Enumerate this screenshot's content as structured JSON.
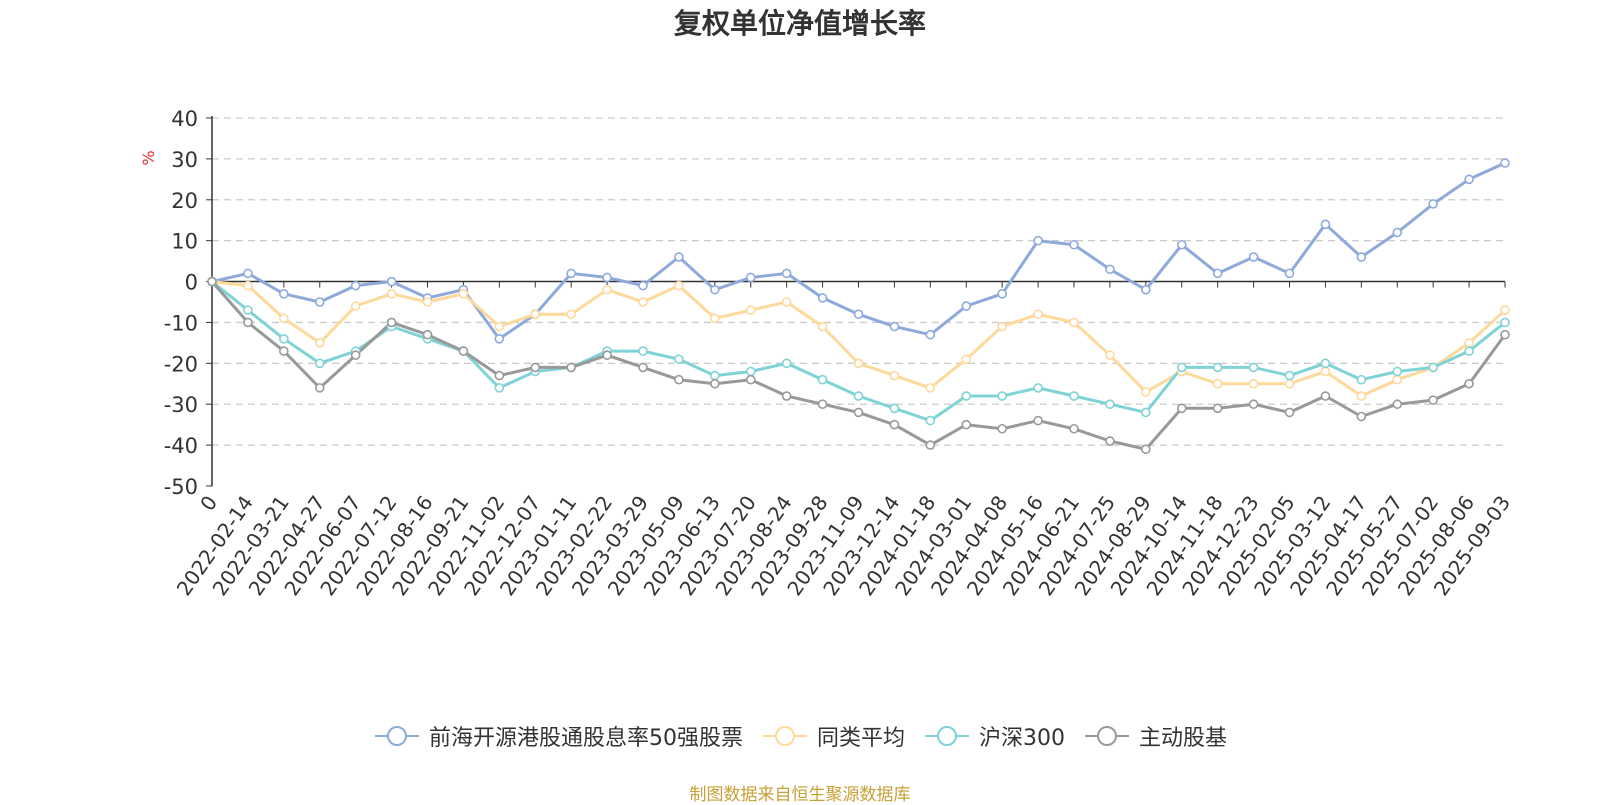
{
  "chart_data": {
    "type": "line",
    "title": "复权单位净值增长率",
    "ylabel": "%",
    "ylim": [
      -50,
      40
    ],
    "yticks": [
      40,
      30,
      20,
      10,
      0,
      -10,
      -20,
      -30,
      -40,
      -50
    ],
    "grid": true,
    "legend_position": "bottom",
    "x_tick_labels": [
      "0",
      "2022-02-14",
      "2022-03-21",
      "2022-04-27",
      "2022-06-07",
      "2022-07-12",
      "2022-08-16",
      "2022-09-21",
      "2022-11-02",
      "2022-12-07",
      "2023-01-11",
      "2023-02-22",
      "2023-03-29",
      "2023-05-09",
      "2023-06-13",
      "2023-07-20",
      "2023-08-24",
      "2023-09-28",
      "2023-11-09",
      "2023-12-14",
      "2024-01-18",
      "2024-03-01",
      "2024-04-08",
      "2024-05-16",
      "2024-06-21",
      "2024-07-25",
      "2024-08-29",
      "2024-10-14",
      "2024-11-18",
      "2024-12-23",
      "2025-02-05",
      "2025-03-12",
      "2025-04-17",
      "2025-05-27",
      "2025-07-02",
      "2025-08-06",
      "2025-09-03"
    ],
    "x_positions": [
      0,
      1,
      2,
      3,
      4,
      5,
      6,
      7,
      8,
      9,
      10,
      11,
      12,
      13,
      14,
      15,
      16,
      17,
      18,
      19,
      20,
      21,
      22,
      23,
      24,
      25,
      26,
      27,
      28,
      29,
      30,
      31,
      32,
      33,
      34,
      35,
      36
    ],
    "series": [
      {
        "name": "前海开源港股通股息率50强股票",
        "color": "#8eaadb",
        "values": [
          0,
          2,
          -3,
          -5,
          -1,
          0,
          -4,
          -2,
          -14,
          -8,
          2,
          1,
          -1,
          6,
          -2,
          1,
          2,
          -4,
          -8,
          -11,
          -13,
          -6,
          -3,
          10,
          9,
          3,
          -2,
          9,
          2,
          6,
          2,
          14,
          6,
          12,
          19,
          25,
          29
        ]
      },
      {
        "name": "同类平均",
        "color": "#ffd89b",
        "values": [
          0,
          -1,
          -9,
          -15,
          -6,
          -3,
          -5,
          -3,
          -11,
          -8,
          -8,
          -2,
          -5,
          -1,
          -9,
          -7,
          -5,
          -11,
          -20,
          -23,
          -26,
          -19,
          -11,
          -8,
          -10,
          -18,
          -27,
          -22,
          -25,
          -25,
          -25,
          -22,
          -28,
          -24,
          -21,
          -15,
          -7
        ]
      },
      {
        "name": "沪深300",
        "color": "#7fd3d6",
        "values": [
          0,
          -7,
          -14,
          -20,
          -17,
          -11,
          -14,
          -17,
          -26,
          -22,
          -21,
          -17,
          -17,
          -19,
          -23,
          -22,
          -20,
          -24,
          -28,
          -31,
          -34,
          -28,
          -28,
          -26,
          -28,
          -30,
          -32,
          -21,
          -21,
          -21,
          -23,
          -20,
          -24,
          -22,
          -21,
          -17,
          -10
        ]
      },
      {
        "name": "主动股基",
        "color": "#999999",
        "values": [
          0,
          -10,
          -17,
          -26,
          -18,
          -10,
          -13,
          -17,
          -23,
          -21,
          -21,
          -18,
          -21,
          -24,
          -25,
          -24,
          -28,
          -30,
          -32,
          -35,
          -40,
          -35,
          -36,
          -34,
          -36,
          -39,
          -41,
          -31,
          -31,
          -30,
          -32,
          -28,
          -33,
          -30,
          -29,
          -25,
          -13
        ]
      }
    ]
  },
  "source_note": "制图数据来自恒生聚源数据库"
}
